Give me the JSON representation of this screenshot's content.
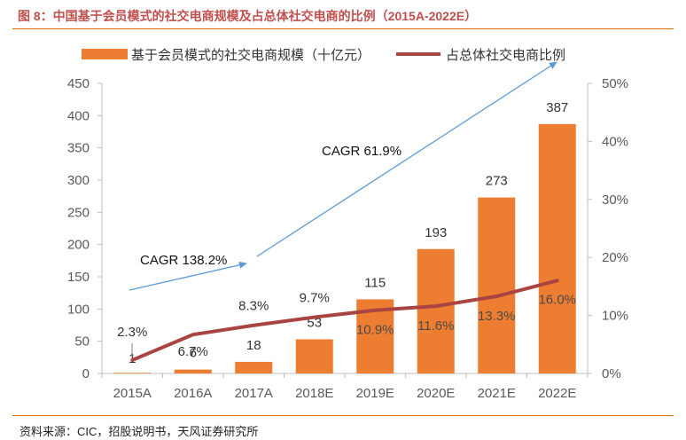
{
  "title": "图 8：中国基于会员模式的社交电商规模及占总体社交电商的比例（2015A-2022E）",
  "source": "资料来源：CIC，招股说明书，天风证券研究所",
  "chart_data": {
    "type": "bar+line",
    "categories": [
      "2015A",
      "2016A",
      "2017A",
      "2018E",
      "2019E",
      "2020E",
      "2021E",
      "2022E"
    ],
    "bar_series": {
      "name": "基于会员模式的社交电商规模（十亿元）",
      "values": [
        1,
        6,
        18,
        53,
        115,
        193,
        273,
        387
      ],
      "labels": [
        "1",
        "6",
        "18",
        "53",
        "115",
        "193",
        "273",
        "387"
      ],
      "color": "#ed7d31"
    },
    "line_series": {
      "name": "占总体社交电商比例",
      "values": [
        2.3,
        6.7,
        8.3,
        9.7,
        10.9,
        11.6,
        13.3,
        16.0
      ],
      "labels": [
        "2.3%",
        "6.7%",
        "8.3%",
        "9.7%",
        "10.9%",
        "11.6%",
        "13.3%",
        "16.0%"
      ],
      "color": "#a94442"
    },
    "y_left": {
      "min": 0,
      "max": 450,
      "step": 50,
      "ticks": [
        "0",
        "50",
        "100",
        "150",
        "200",
        "250",
        "300",
        "350",
        "400",
        "450"
      ]
    },
    "y_right": {
      "min": 0,
      "max": 50,
      "step": 10,
      "ticks": [
        "0%",
        "10%",
        "20%",
        "30%",
        "40%",
        "50%"
      ]
    },
    "annotations": [
      {
        "text": "CAGR 138.2%"
      },
      {
        "text": "CAGR 61.9%"
      }
    ],
    "arrow_color": "#5b9bd5",
    "legend_position": "top",
    "grid": false
  }
}
